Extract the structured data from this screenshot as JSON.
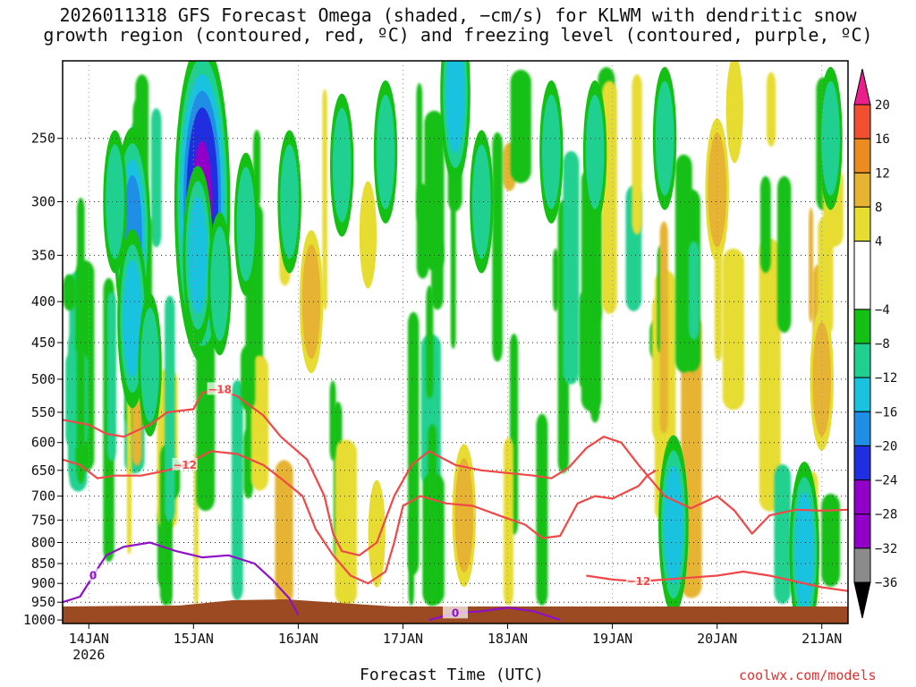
{
  "title_line1": "2026011318 GFS Forecast Omega (shaded, −cm/s) for KLWM with dendritic snow",
  "title_line2": "growth region (contoured, red, ºC) and freezing level (contoured, purple, ºC)",
  "credit": "coolwx.com/models",
  "colors": {
    "omega_levels": [
      "#8b8b8b",
      "#9000c8",
      "#1f2fe0",
      "#1f8fe6",
      "#19c3e0",
      "#20d090",
      "#15c015",
      "#ffffff",
      "#e6dc32",
      "#e6b432",
      "#eb8c20",
      "#f05030",
      "#ea1f8c"
    ],
    "snow_growth_contour": "#f04848",
    "freezing_contour": "#9010c8",
    "ground": "#9b4a22"
  },
  "chart_data": {
    "type": "heatmap",
    "title": "2026011318 GFS Forecast Omega (shaded, −cm/s) for KLWM with dendritic snow growth region (contoured, red, ºC) and freezing level (contoured, purple, ºC)",
    "xlabel": "Forecast Time (UTC)",
    "ylabel": "",
    "x_ticks": [
      "14JAN",
      "15JAN",
      "16JAN",
      "17JAN",
      "18JAN",
      "19JAN",
      "20JAN",
      "21JAN"
    ],
    "x_year": "2026",
    "x_range": [
      "2026-01-13T18:00Z",
      "2026-01-21T06:00Z"
    ],
    "y_ticks": [
      250,
      300,
      350,
      400,
      450,
      500,
      550,
      600,
      650,
      700,
      750,
      800,
      850,
      900,
      950,
      1000
    ],
    "y_range": [
      200,
      1010
    ],
    "grid": true,
    "colorbar": {
      "labels": [
        "20",
        "16",
        "12",
        "8",
        "4",
        "−4",
        "−8",
        "−12",
        "−16",
        "−20",
        "−24",
        "−28",
        "−32",
        "−36"
      ],
      "values": [
        20,
        16,
        12,
        8,
        4,
        -4,
        -8,
        -12,
        -16,
        -20,
        -24,
        -28,
        -32,
        -36
      ]
    },
    "omega_cells": [
      {
        "t": "2026-01-14T10:00Z",
        "p": 330,
        "v": -16
      },
      {
        "t": "2026-01-14T10:00Z",
        "p": 420,
        "v": -12
      },
      {
        "t": "2026-01-14T06:00Z",
        "p": 300,
        "v": -8
      },
      {
        "t": "2026-01-14T14:00Z",
        "p": 480,
        "v": -8
      },
      {
        "t": "2026-01-15T02:00Z",
        "p": 300,
        "v": -28
      },
      {
        "t": "2026-01-15T01:00Z",
        "p": 350,
        "v": -12
      },
      {
        "t": "2026-01-15T06:00Z",
        "p": 380,
        "v": -8
      },
      {
        "t": "2026-01-15T12:00Z",
        "p": 320,
        "v": -8
      },
      {
        "t": "2026-01-15T22:00Z",
        "p": 300,
        "v": -8
      },
      {
        "t": "2026-01-16T03:00Z",
        "p": 400,
        "v": 8
      },
      {
        "t": "2026-01-16T10:00Z",
        "p": 270,
        "v": -8
      },
      {
        "t": "2026-01-16T16:00Z",
        "p": 330,
        "v": 4
      },
      {
        "t": "2026-01-16T20:00Z",
        "p": 260,
        "v": -8
      },
      {
        "t": "2026-01-17T12:00Z",
        "p": 220,
        "v": -12
      },
      {
        "t": "2026-01-17T18:00Z",
        "p": 300,
        "v": -8
      },
      {
        "t": "2026-01-18T10:00Z",
        "p": 260,
        "v": -8
      },
      {
        "t": "2026-01-18T20:00Z",
        "p": 260,
        "v": -8
      },
      {
        "t": "2026-01-17T14:00Z",
        "p": 740,
        "v": 8
      },
      {
        "t": "2026-01-16T18:00Z",
        "p": 780,
        "v": 4
      },
      {
        "t": "2026-01-19T12:00Z",
        "p": 250,
        "v": -8
      },
      {
        "t": "2026-01-19T14:00Z",
        "p": 760,
        "v": -12
      },
      {
        "t": "2026-01-20T00:00Z",
        "p": 290,
        "v": 8
      },
      {
        "t": "2026-01-20T04:00Z",
        "p": 230,
        "v": 4
      },
      {
        "t": "2026-01-20T20:00Z",
        "p": 820,
        "v": -12
      },
      {
        "t": "2026-01-21T00:00Z",
        "p": 500,
        "v": 8
      },
      {
        "t": "2026-01-21T02:00Z",
        "p": 250,
        "v": -8
      }
    ],
    "snow_growth_contours": [
      {
        "label": "−12",
        "points": [
          [
            "2026-01-13T18:00Z",
            630
          ],
          [
            "2026-01-13T22:00Z",
            640
          ],
          [
            "2026-01-14T02:00Z",
            665
          ],
          [
            "2026-01-14T06:00Z",
            660
          ],
          [
            "2026-01-14T12:00Z",
            660
          ],
          [
            "2026-01-14T18:00Z",
            650
          ],
          [
            "2026-01-14T22:00Z",
            640
          ],
          [
            "2026-01-15T04:00Z",
            615
          ],
          [
            "2026-01-15T10:00Z",
            620
          ],
          [
            "2026-01-15T16:00Z",
            640
          ],
          [
            "2026-01-15T20:00Z",
            665
          ],
          [
            "2026-01-16T01:00Z",
            700
          ],
          [
            "2026-01-16T04:00Z",
            770
          ],
          [
            "2026-01-16T08:00Z",
            830
          ],
          [
            "2026-01-16T12:00Z",
            880
          ],
          [
            "2026-01-16T16:00Z",
            900
          ],
          [
            "2026-01-16T20:00Z",
            870
          ],
          [
            "2026-01-16T22:00Z",
            800
          ],
          [
            "2026-01-17T00:00Z",
            720
          ],
          [
            "2026-01-17T04:00Z",
            700
          ],
          [
            "2026-01-17T10:00Z",
            715
          ],
          [
            "2026-01-17T16:00Z",
            720
          ],
          [
            "2026-01-17T22:00Z",
            740
          ],
          [
            "2026-01-18T04:00Z",
            760
          ],
          [
            "2026-01-18T08:00Z",
            790
          ],
          [
            "2026-01-18T12:00Z",
            785
          ],
          [
            "2026-01-18T16:00Z",
            715
          ],
          [
            "2026-01-18T20:00Z",
            700
          ],
          [
            "2026-01-19T00:00Z",
            705
          ],
          [
            "2026-01-19T06:00Z",
            680
          ],
          [
            "2026-01-19T08:00Z",
            660
          ],
          [
            "2026-01-19T10:00Z",
            650
          ]
        ]
      },
      {
        "label": "−12",
        "points": [
          [
            "2026-01-18T18:00Z",
            880
          ],
          [
            "2026-01-19T00:00Z",
            890
          ],
          [
            "2026-01-19T06:00Z",
            895
          ],
          [
            "2026-01-19T12:00Z",
            890
          ],
          [
            "2026-01-19T18:00Z",
            885
          ],
          [
            "2026-01-20T00:00Z",
            880
          ],
          [
            "2026-01-20T06:00Z",
            870
          ],
          [
            "2026-01-20T12:00Z",
            880
          ],
          [
            "2026-01-20T18:00Z",
            895
          ],
          [
            "2026-01-21T00:00Z",
            910
          ],
          [
            "2026-01-21T06:00Z",
            920
          ]
        ]
      },
      {
        "label": "−18",
        "points": [
          [
            "2026-01-13T18:00Z",
            562
          ],
          [
            "2026-01-14T00:00Z",
            570
          ],
          [
            "2026-01-14T04:00Z",
            585
          ],
          [
            "2026-01-14T08:00Z",
            590
          ],
          [
            "2026-01-14T14:00Z",
            570
          ],
          [
            "2026-01-14T18:00Z",
            550
          ],
          [
            "2026-01-15T00:00Z",
            545
          ],
          [
            "2026-01-15T02:00Z",
            520
          ],
          [
            "2026-01-15T06:00Z",
            515
          ],
          [
            "2026-01-15T10:00Z",
            525
          ],
          [
            "2026-01-15T16:00Z",
            555
          ],
          [
            "2026-01-15T20:00Z",
            590
          ],
          [
            "2026-01-16T02:00Z",
            630
          ],
          [
            "2026-01-16T06:00Z",
            700
          ],
          [
            "2026-01-16T08:00Z",
            780
          ],
          [
            "2026-01-16T10:00Z",
            820
          ],
          [
            "2026-01-16T14:00Z",
            830
          ],
          [
            "2026-01-16T18:00Z",
            800
          ],
          [
            "2026-01-16T22:00Z",
            700
          ],
          [
            "2026-01-17T02:00Z",
            640
          ],
          [
            "2026-01-17T06:00Z",
            615
          ],
          [
            "2026-01-17T12:00Z",
            640
          ],
          [
            "2026-01-17T18:00Z",
            650
          ],
          [
            "2026-01-18T00:00Z",
            655
          ],
          [
            "2026-01-18T06:00Z",
            660
          ],
          [
            "2026-01-18T10:00Z",
            665
          ],
          [
            "2026-01-18T14:00Z",
            645
          ],
          [
            "2026-01-18T18:00Z",
            610
          ],
          [
            "2026-01-18T22:00Z",
            590
          ],
          [
            "2026-01-19T02:00Z",
            600
          ],
          [
            "2026-01-19T06:00Z",
            640
          ],
          [
            "2026-01-19T12:00Z",
            700
          ],
          [
            "2026-01-19T18:00Z",
            725
          ],
          [
            "2026-01-20T00:00Z",
            700
          ],
          [
            "2026-01-20T04:00Z",
            730
          ],
          [
            "2026-01-20T08:00Z",
            780
          ],
          [
            "2026-01-20T12:00Z",
            740
          ],
          [
            "2026-01-20T18:00Z",
            728
          ],
          [
            "2026-01-21T00:00Z",
            730
          ],
          [
            "2026-01-21T06:00Z",
            728
          ]
        ]
      }
    ],
    "freezing_contours": [
      {
        "label": "0",
        "points": [
          [
            "2026-01-13T18:00Z",
            950
          ],
          [
            "2026-01-13T22:00Z",
            935
          ],
          [
            "2026-01-14T01:00Z",
            880
          ],
          [
            "2026-01-14T04:00Z",
            830
          ],
          [
            "2026-01-14T08:00Z",
            810
          ],
          [
            "2026-01-14T14:00Z",
            800
          ],
          [
            "2026-01-14T20:00Z",
            820
          ],
          [
            "2026-01-15T02:00Z",
            835
          ],
          [
            "2026-01-15T08:00Z",
            830
          ],
          [
            "2026-01-15T14:00Z",
            850
          ],
          [
            "2026-01-15T18:00Z",
            890
          ],
          [
            "2026-01-15T22:00Z",
            940
          ],
          [
            "2026-01-16T00:00Z",
            985
          ]
        ]
      },
      {
        "label": "0",
        "points": [
          [
            "2026-01-17T06:00Z",
            1000
          ],
          [
            "2026-01-17T12:00Z",
            980
          ],
          [
            "2026-01-17T18:00Z",
            975
          ],
          [
            "2026-01-18T00:00Z",
            965
          ],
          [
            "2026-01-18T06:00Z",
            975
          ],
          [
            "2026-01-18T12:00Z",
            1000
          ]
        ]
      }
    ]
  }
}
